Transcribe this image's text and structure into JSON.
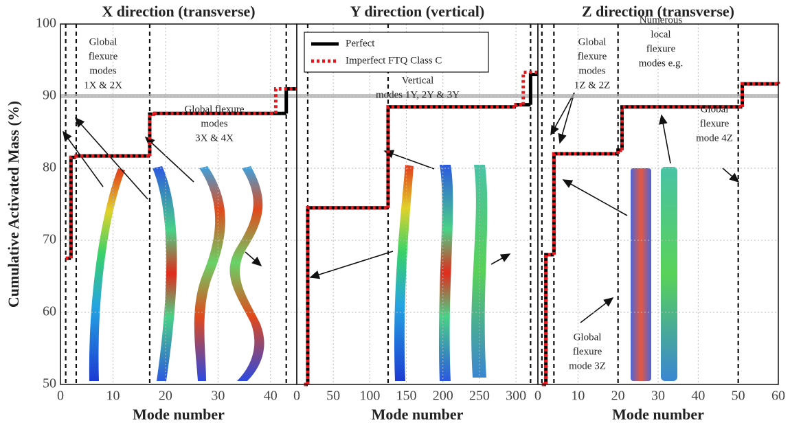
{
  "chart_data": [
    {
      "type": "line",
      "step": true,
      "title": "X direction (transverse)",
      "xlabel": "Mode number",
      "ylabel": "Cumulative Activated Mass (%)",
      "xlim": [
        0,
        45
      ],
      "xticks": [
        0,
        10,
        20,
        30,
        40
      ],
      "ylim": [
        50,
        100
      ],
      "yticks": [
        50,
        60,
        70,
        80,
        90,
        100
      ],
      "grid": true,
      "threshold": 90,
      "threshold_color": "#aaaaaa",
      "vlines": [
        1,
        3,
        17,
        43
      ],
      "series": [
        {
          "color": "#000000",
          "x": [
            1,
            2,
            3,
            17,
            18,
            42,
            43,
            45
          ],
          "values": [
            67.5,
            81.5,
            81.7,
            87.5,
            87.6,
            87.6,
            91,
            91
          ]
        },
        {
          "color": "#e8161b",
          "x": [
            1,
            2,
            3,
            17,
            18,
            40,
            41,
            45
          ],
          "values": [
            67.5,
            81.5,
            81.7,
            87.5,
            87.6,
            87.6,
            91,
            91
          ]
        }
      ],
      "annotations": [
        [
          "Global",
          "flexure",
          "modes",
          "1X & 2X"
        ],
        [
          "Global flexure",
          "modes",
          "3X & 4X"
        ]
      ]
    },
    {
      "type": "line",
      "step": true,
      "title": "Y direction (vertical)",
      "xlabel": "Mode number",
      "xlim": [
        0,
        330
      ],
      "xticks": [
        0,
        50,
        100,
        150,
        200,
        250,
        300
      ],
      "ylim": [
        50,
        100
      ],
      "yticks": [
        50,
        60,
        70,
        80,
        90,
        100
      ],
      "grid": true,
      "threshold": 90,
      "threshold_color": "#aaaaaa",
      "vlines": [
        15,
        125,
        320
      ],
      "series": [
        {
          "name": "Perfect",
          "color": "#000000",
          "x": [
            10,
            15,
            125,
            300,
            320,
            330
          ],
          "values": [
            50,
            74.5,
            88.5,
            88.8,
            93,
            93
          ]
        },
        {
          "name": "Imperfect FTQ Class C",
          "color": "#e8161b",
          "x": [
            10,
            15,
            125,
            300,
            310,
            330
          ],
          "values": [
            50,
            74.5,
            88.5,
            88.8,
            93.3,
            93.3
          ]
        }
      ],
      "annotations": [
        [
          "Vertical",
          "modes 1Y, 2Y & 3Y"
        ]
      ]
    },
    {
      "type": "line",
      "step": true,
      "title": "Z direction (transverse)",
      "xlabel": "Mode number",
      "xlim": [
        0,
        60
      ],
      "xticks": [
        0,
        10,
        20,
        30,
        40,
        50,
        60
      ],
      "ylim": [
        50,
        100
      ],
      "yticks": [
        50,
        60,
        70,
        80,
        90,
        100
      ],
      "grid": true,
      "threshold": 90,
      "threshold_color": "#aaaaaa",
      "vlines": [
        1,
        4,
        20,
        50
      ],
      "series": [
        {
          "color": "#000000",
          "x": [
            1,
            2,
            4,
            20,
            21,
            50,
            51,
            60
          ],
          "values": [
            50,
            68,
            82,
            82.5,
            88.5,
            88.5,
            91.7,
            92
          ]
        },
        {
          "color": "#e8161b",
          "x": [
            1,
            2,
            4,
            20,
            21,
            50,
            51,
            60
          ],
          "values": [
            50,
            68,
            82,
            82.5,
            88.5,
            88.5,
            91.7,
            92
          ]
        }
      ],
      "annotations": [
        [
          "Global",
          "flexure",
          "modes",
          "1Z & 2Z"
        ],
        [
          "Numerous",
          "local",
          "flexure",
          "modes e.g."
        ],
        [
          "Global",
          "flexure",
          "mode 4Z"
        ],
        [
          "Global",
          "flexure",
          "mode 3Z"
        ]
      ]
    }
  ]
}
